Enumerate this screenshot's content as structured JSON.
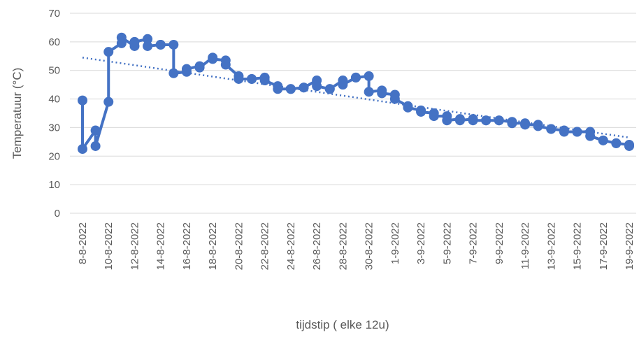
{
  "chart_data": {
    "type": "line",
    "xlabel": "tijdstip ( elke 12u)",
    "ylabel": "Temperatuur (°C)",
    "x": [
      "8-8-2022",
      "8-8-2022",
      "9-8-2022",
      "9-8-2022",
      "10-8-2022",
      "10-8-2022",
      "11-8-2022",
      "11-8-2022",
      "12-8-2022",
      "12-8-2022",
      "13-8-2022",
      "13-8-2022",
      "14-8-2022",
      "14-8-2022",
      "15-8-2022",
      "15-8-2022",
      "16-8-2022",
      "16-8-2022",
      "17-8-2022",
      "17-8-2022",
      "18-8-2022",
      "18-8-2022",
      "19-8-2022",
      "19-8-2022",
      "20-8-2022",
      "20-8-2022",
      "21-8-2022",
      "21-8-2022",
      "22-8-2022",
      "22-8-2022",
      "23-8-2022",
      "23-8-2022",
      "24-8-2022",
      "24-8-2022",
      "25-8-2022",
      "25-8-2022",
      "26-8-2022",
      "26-8-2022",
      "27-8-2022",
      "27-8-2022",
      "28-8-2022",
      "28-8-2022",
      "29-8-2022",
      "29-8-2022",
      "30-8-2022",
      "30-8-2022",
      "31-8-2022",
      "31-8-2022",
      "1-9-2022",
      "1-9-2022",
      "2-9-2022",
      "2-9-2022",
      "3-9-2022",
      "3-9-2022",
      "4-9-2022",
      "4-9-2022",
      "5-9-2022",
      "5-9-2022",
      "6-9-2022",
      "6-9-2022",
      "7-9-2022",
      "7-9-2022",
      "8-9-2022",
      "8-9-2022",
      "9-9-2022",
      "9-9-2022",
      "10-9-2022",
      "10-9-2022",
      "11-9-2022",
      "11-9-2022",
      "12-9-2022",
      "12-9-2022",
      "13-9-2022",
      "13-9-2022",
      "14-9-2022",
      "14-9-2022",
      "15-9-2022",
      "15-9-2022",
      "16-9-2022",
      "16-9-2022",
      "17-9-2022",
      "17-9-2022",
      "18-9-2022",
      "18-9-2022",
      "19-9-2022",
      "19-9-2022"
    ],
    "series": [
      {
        "color": "#4472c4",
        "values": [
          39.5,
          22.5,
          29,
          23.5,
          39,
          56.5,
          59.5,
          61.5,
          58.5,
          60,
          61,
          58.5,
          59,
          59,
          59,
          49,
          49.5,
          50.5,
          51.5,
          51,
          54.5,
          54,
          53.5,
          52,
          48,
          47,
          47,
          47,
          47.5,
          46.5,
          44.5,
          43.5,
          43.5,
          43.5,
          44,
          44,
          46.5,
          44.5,
          43.5,
          43.5,
          46.5,
          45,
          47.5,
          47.5,
          48,
          42.5,
          43,
          42,
          41.5,
          40,
          37.5,
          37,
          36,
          35.5,
          35,
          34,
          34,
          32.5,
          33,
          32.5,
          33,
          32.5,
          32.5,
          32.5,
          32.5,
          32.5,
          32,
          31.5,
          31.5,
          31,
          31,
          30.5,
          29.5,
          29.5,
          29,
          28.5,
          28.5,
          28.5,
          28.5,
          27,
          25.5,
          25.5,
          24.5,
          24.5,
          24,
          23.5
        ]
      }
    ],
    "trendline": {
      "color": "#4472c4",
      "x": [
        "8-8-2022",
        "19-9-2022"
      ],
      "values": [
        54.5,
        26.5
      ]
    },
    "xlim": [
      "8-8-2022",
      "19-9-2022"
    ],
    "xticks": [
      "8-8-2022",
      "10-8-2022",
      "12-8-2022",
      "14-8-2022",
      "16-8-2022",
      "18-8-2022",
      "20-8-2022",
      "22-8-2022",
      "24-8-2022",
      "26-8-2022",
      "28-8-2022",
      "30-8-2022",
      "1-9-2022",
      "3-9-2022",
      "5-9-2022",
      "7-9-2022",
      "9-9-2022",
      "11-9-2022",
      "13-9-2022",
      "15-9-2022",
      "17-9-2022",
      "19-9-2022"
    ],
    "ylim": [
      0,
      70
    ],
    "yticks": [
      0,
      10,
      20,
      30,
      40,
      50,
      60,
      70
    ],
    "grid": true
  }
}
